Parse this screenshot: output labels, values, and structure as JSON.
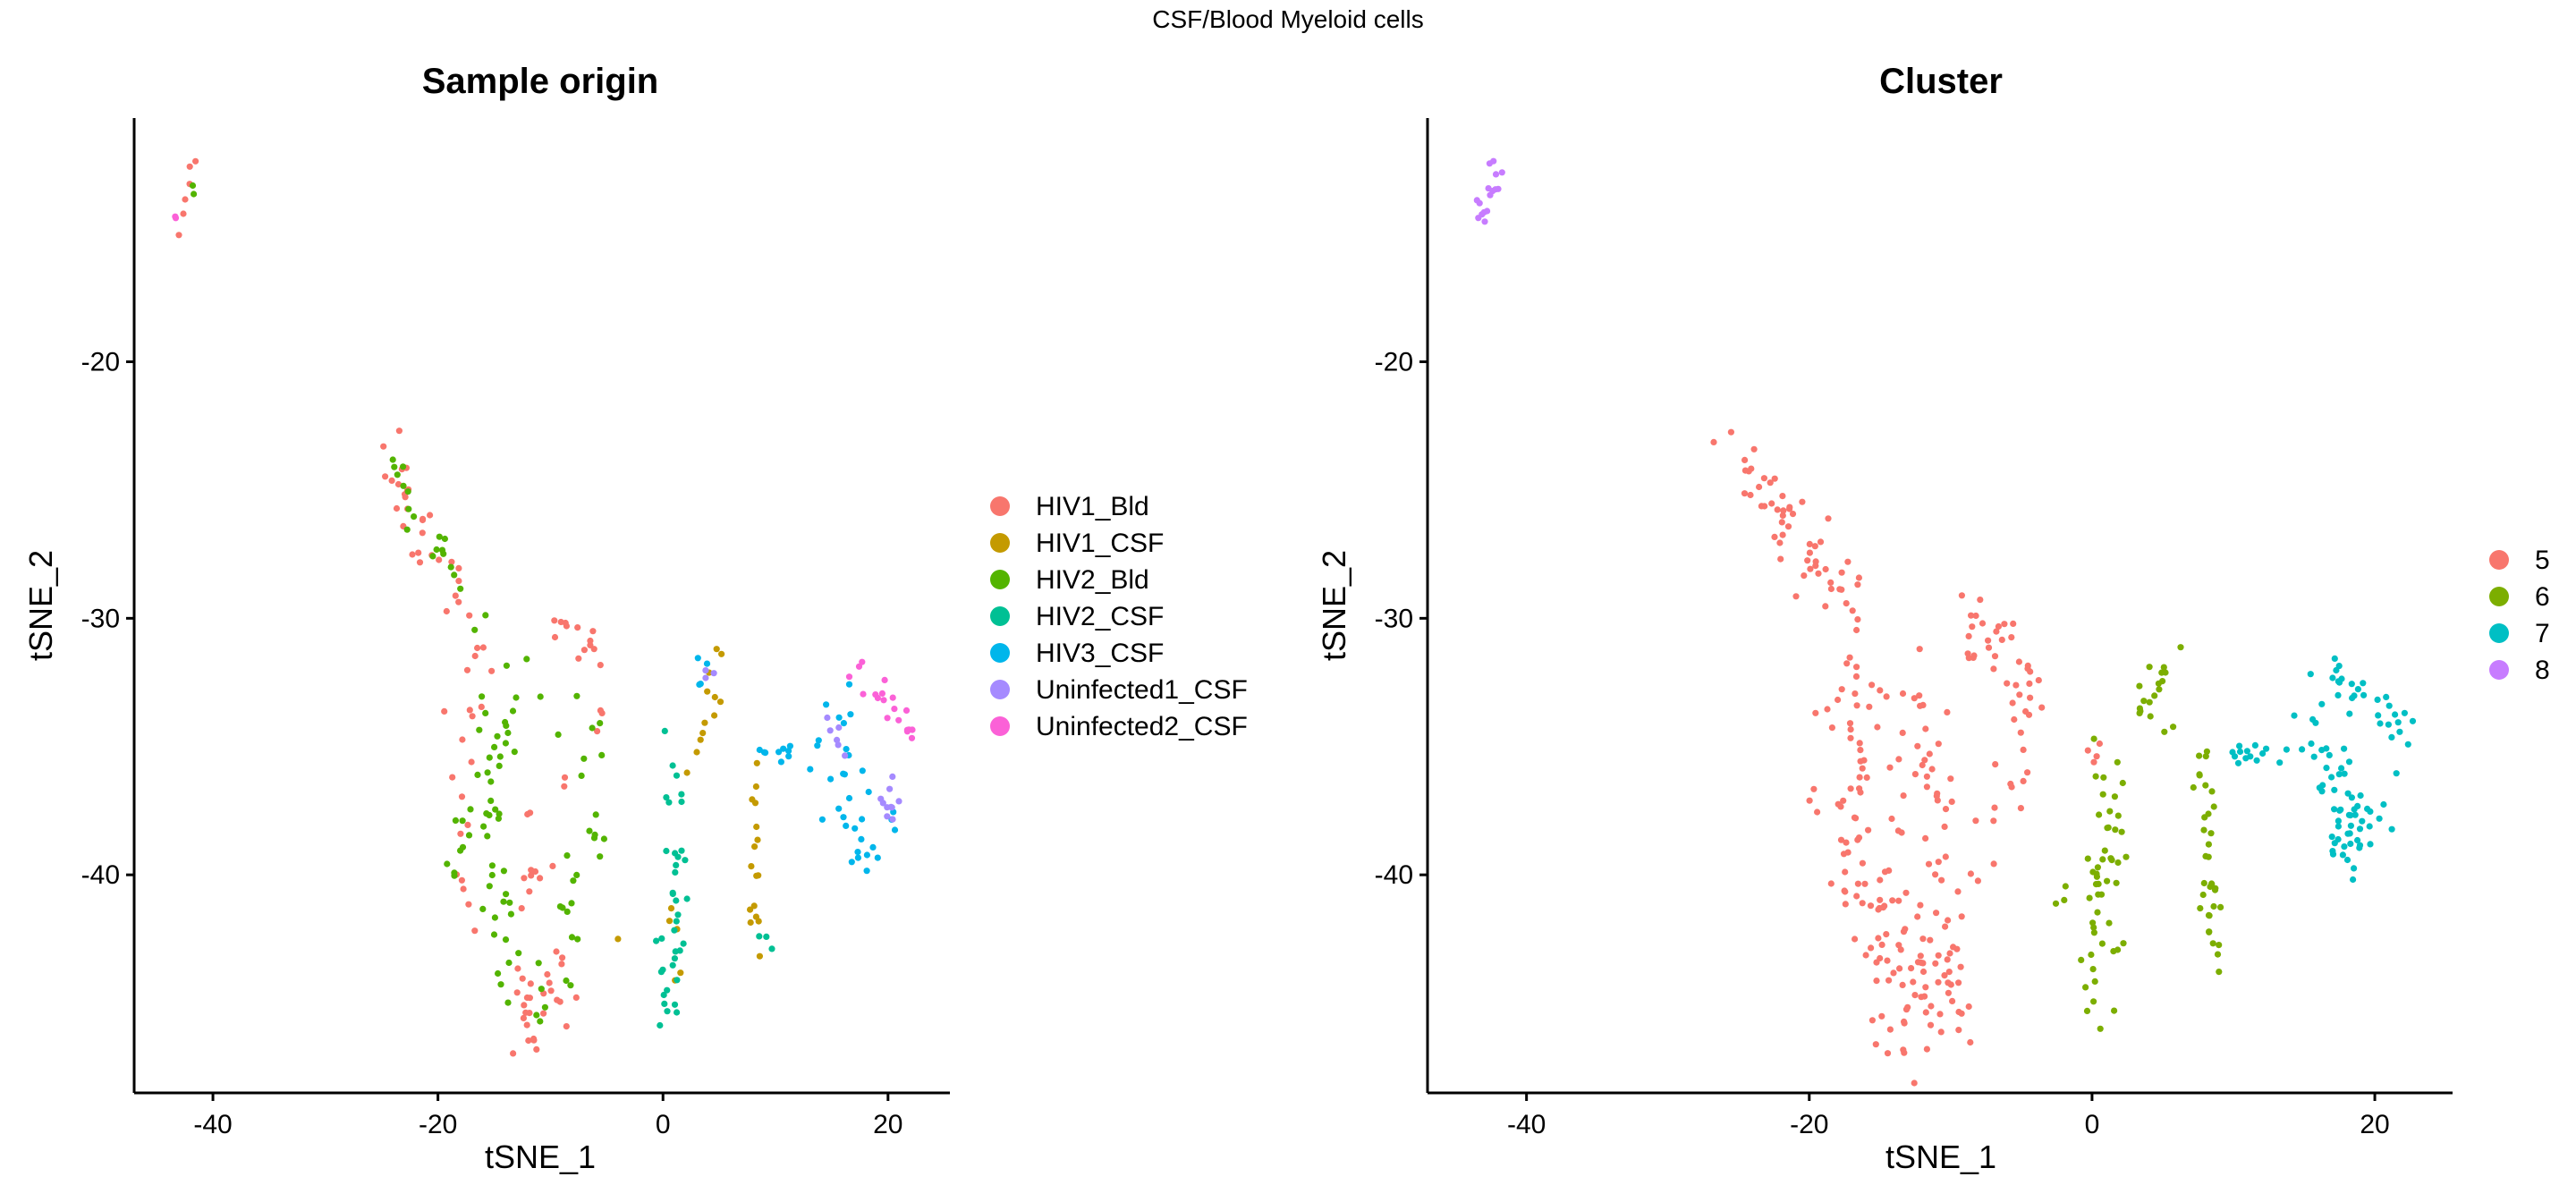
{
  "figure_title": "CSF/Blood Myeloid cells",
  "chart_data": [
    {
      "type": "scatter",
      "title": "Sample origin",
      "xlabel": "tSNE_1",
      "ylabel": "tSNE_2",
      "xlim": [
        -47,
        25.5
      ],
      "ylim": [
        -48.5,
        -10.5
      ],
      "xticks": [
        -40,
        -20,
        0,
        20
      ],
      "yticks": [
        -20,
        -30,
        -40
      ],
      "legend_position": "right",
      "grid": false,
      "series": [
        {
          "name": "HIV1_Bld",
          "color": "#F8766D",
          "regions": [
            {
              "pts": [
                [
                  -42,
                  -12
                ],
                [
                  -41.8,
                  -12.6
                ],
                [
                  -42.3,
                  -13.2
                ],
                [
                  -42.5,
                  -14.2
                ],
                [
                  -43,
                  -14.6
                ],
                [
                  -43.2,
                  -15.2
                ]
              ],
              "sx": 0.3,
              "sy": 0.4
            },
            {
              "pts": [
                [
                  -25,
                  -23.3
                ],
                [
                  -23,
                  -25.5
                ],
                [
                  -21,
                  -27
                ],
                [
                  -19,
                  -28.3
                ],
                [
                  -17,
                  -29.5
                ]
              ],
              "n": 30,
              "sx": 0.6,
              "sy": 0.6
            },
            {
              "pts": [
                [
                  -10,
                  -30.2
                ],
                [
                  -8,
                  -30.2
                ],
                [
                  -6,
                  -31.3
                ],
                [
                  -5,
                  -33.5
                ],
                [
                  -5.5,
                  -35.5
                ]
              ],
              "n": 16,
              "sx": 0.4,
              "sy": 0.4
            },
            {
              "pts": [
                [
                  -16,
                  -31
                ],
                [
                  -17,
                  -34
                ],
                [
                  -18,
                  -38
                ],
                [
                  -17,
                  -42
                ]
              ],
              "n": 20,
              "sx": 1.0,
              "sy": 1.0
            },
            {
              "pts": [
                [
                  -11,
                  -38
                ],
                [
                  -12,
                  -42
                ],
                [
                  -12,
                  -45
                ],
                [
                  -12,
                  -46.5
                ]
              ],
              "n": 26,
              "sx": 1.0,
              "sy": 0.7
            },
            {
              "pts": [
                [
                  -8,
                  -36
                ],
                [
                  -9,
                  -40
                ],
                [
                  -10,
                  -44
                ],
                [
                  -9,
                  -45.5
                ]
              ],
              "n": 14,
              "sx": 0.8,
              "sy": 0.8
            }
          ]
        },
        {
          "name": "HIV1_CSF",
          "color": "#C49A00",
          "regions": [
            {
              "pts": [
                [
                  5,
                  -31.5
                ],
                [
                  4.5,
                  -33
                ],
                [
                  4,
                  -34.5
                ],
                [
                  3,
                  -35.5
                ],
                [
                  2,
                  -36
                ]
              ],
              "n": 12,
              "sx": 0.4,
              "sy": 0.5
            },
            {
              "pts": [
                [
                  8,
                  -35.5
                ],
                [
                  8.3,
                  -38
                ],
                [
                  8.2,
                  -41
                ],
                [
                  8.5,
                  -43
                ]
              ],
              "n": 16,
              "sx": 0.3,
              "sy": 0.5
            },
            {
              "pts": [
                [
                  0.5,
                  -40
                ],
                [
                  1,
                  -42
                ],
                [
                  1.2,
                  -44.5
                ]
              ],
              "n": 5,
              "sx": 0.4,
              "sy": 0.6
            },
            {
              "pts": [
                [
                  -4,
                  -42.5
                ]
              ],
              "n": 1,
              "sx": 0.2,
              "sy": 0.2
            }
          ]
        },
        {
          "name": "HIV2_Bld",
          "color": "#53B400",
          "regions": [
            {
              "pts": [
                [
                  -42,
                  -13.4
                ]
              ],
              "n": 2,
              "sx": 0.15,
              "sy": 0.2
            },
            {
              "pts": [
                [
                  -24,
                  -24
                ],
                [
                  -22,
                  -26
                ],
                [
                  -20,
                  -27.5
                ],
                [
                  -17,
                  -29.5
                ],
                [
                  -15,
                  -30
                ]
              ],
              "n": 20,
              "sx": 0.6,
              "sy": 0.6
            },
            {
              "pts": [
                [
                  -13,
                  -33
                ],
                [
                  -15,
                  -35
                ],
                [
                  -16,
                  -37
                ],
                [
                  -17,
                  -39
                ],
                [
                  -15,
                  -41
                ],
                [
                  -13,
                  -43
                ],
                [
                  -12,
                  -45
                ]
              ],
              "n": 60,
              "sx": 1.3,
              "sy": 0.9
            },
            {
              "pts": [
                [
                  -8,
                  -34
                ],
                [
                  -7,
                  -36
                ],
                [
                  -6,
                  -38
                ],
                [
                  -8,
                  -40
                ],
                [
                  -9,
                  -42
                ],
                [
                  -9,
                  -44
                ]
              ],
              "n": 24,
              "sx": 0.9,
              "sy": 0.8
            }
          ]
        },
        {
          "name": "HIV2_CSF",
          "color": "#00C094",
          "regions": [
            {
              "pts": [
                [
                  0,
                  -34.5
                ],
                [
                  1,
                  -36
                ],
                [
                  1.5,
                  -38
                ],
                [
                  1,
                  -40
                ],
                [
                  1,
                  -42
                ],
                [
                  0.5,
                  -44
                ],
                [
                  0.5,
                  -45.3
                ]
              ],
              "n": 38,
              "sx": 0.6,
              "sy": 0.5
            },
            {
              "pts": [
                [
                  8.5,
                  -42.5
                ],
                [
                  9.5,
                  -43
                ]
              ],
              "n": 3,
              "sx": 0.3,
              "sy": 0.3
            }
          ]
        },
        {
          "name": "HIV3_CSF",
          "color": "#00B6EB",
          "regions": [
            {
              "pts": [
                [
                  8,
                  -35.4
                ],
                [
                  10,
                  -35.4
                ],
                [
                  12,
                  -35.3
                ],
                [
                  14,
                  -35.2
                ]
              ],
              "n": 12,
              "sx": 0.4,
              "sy": 0.3
            },
            {
              "pts": [
                [
                  16,
                  -34
                ],
                [
                  17,
                  -36
                ],
                [
                  17,
                  -38
                ],
                [
                  18,
                  -39.7
                ],
                [
                  19.5,
                  -37.5
                ]
              ],
              "n": 30,
              "sx": 1.0,
              "sy": 0.7
            },
            {
              "pts": [
                [
                  3,
                  -32
                ],
                [
                  4,
                  -32.5
                ]
              ],
              "n": 4,
              "sx": 0.3,
              "sy": 0.3
            }
          ]
        },
        {
          "name": "Uninfected1_CSF",
          "color": "#A58AFF",
          "regions": [
            {
              "pts": [
                [
                  19,
                  -37.5
                ],
                [
                  20,
                  -36.8
                ],
                [
                  20,
                  -38.5
                ]
              ],
              "n": 10,
              "sx": 0.5,
              "sy": 0.5
            },
            {
              "pts": [
                [
                  15.5,
                  -34
                ],
                [
                  16,
                  -35
                ]
              ],
              "n": 6,
              "sx": 0.4,
              "sy": 0.4
            },
            {
              "pts": [
                [
                  4,
                  -32.3
                ]
              ],
              "n": 3,
              "sx": 0.3,
              "sy": 0.3
            }
          ]
        },
        {
          "name": "Uninfected2_CSF",
          "color": "#FB61D7",
          "regions": [
            {
              "pts": [
                [
                  17.5,
                  -32.3
                ],
                [
                  19,
                  -32.8
                ],
                [
                  20.5,
                  -33.5
                ],
                [
                  21.5,
                  -34
                ],
                [
                  22,
                  -35
                ]
              ],
              "n": 20,
              "sx": 0.4,
              "sy": 0.3
            },
            {
              "pts": [
                [
                  -43.4,
                  -14
                ],
                [
                  -43.4,
                  -14.5
                ]
              ],
              "n": 2,
              "sx": 0.15,
              "sy": 0.2
            }
          ]
        }
      ]
    },
    {
      "type": "scatter",
      "title": "Cluster",
      "xlabel": "tSNE_1",
      "ylabel": "tSNE_2",
      "xlim": [
        -47,
        25.5
      ],
      "ylim": [
        -48.5,
        -10.5
      ],
      "xticks": [
        -40,
        -20,
        0,
        20
      ],
      "yticks": [
        -20,
        -30,
        -40
      ],
      "legend_position": "right",
      "grid": false,
      "series": [
        {
          "name": "5",
          "color": "#F8766D",
          "regions": [
            {
              "pts": [
                [
                  -25,
                  -23.3
                ],
                [
                  -23,
                  -25.5
                ],
                [
                  -21,
                  -27
                ],
                [
                  -19,
                  -28.3
                ],
                [
                  -17,
                  -29.5
                ]
              ],
              "n": 55,
              "sx": 0.7,
              "sy": 0.6
            },
            {
              "pts": [
                [
                  -16,
                  -31
                ],
                [
                  -17,
                  -34
                ],
                [
                  -17,
                  -37
                ],
                [
                  -17,
                  -40
                ],
                [
                  -15,
                  -42
                ],
                [
                  -13,
                  -44
                ],
                [
                  -12,
                  -46.5
                ]
              ],
              "n": 120,
              "sx": 1.4,
              "sy": 0.9
            },
            {
              "pts": [
                [
                  -13,
                  -32
                ],
                [
                  -12,
                  -36
                ],
                [
                  -11,
                  -40
                ],
                [
                  -10,
                  -43
                ],
                [
                  -10,
                  -45.5
                ]
              ],
              "n": 60,
              "sx": 1.2,
              "sy": 0.9
            },
            {
              "pts": [
                [
                  -10,
                  -30.2
                ],
                [
                  -8,
                  -30.2
                ],
                [
                  -6,
                  -31.3
                ],
                [
                  -5,
                  -33.5
                ],
                [
                  -5.5,
                  -36
                ],
                [
                  -8,
                  -38
                ],
                [
                  -8,
                  -41
                ]
              ],
              "n": 50,
              "sx": 0.9,
              "sy": 0.7
            },
            {
              "pts": [
                [
                  0,
                  -34.5
                ],
                [
                  0.5,
                  -35.5
                ]
              ],
              "n": 4,
              "sx": 0.3,
              "sy": 0.3
            }
          ]
        },
        {
          "name": "6",
          "color": "#7CAE00",
          "regions": [
            {
              "pts": [
                [
                  1,
                  -35
                ],
                [
                  1.5,
                  -37
                ],
                [
                  1.3,
                  -39
                ],
                [
                  1,
                  -41
                ],
                [
                  0.5,
                  -43
                ],
                [
                  0.5,
                  -45.3
                ]
              ],
              "n": 50,
              "sx": 0.7,
              "sy": 0.6
            },
            {
              "pts": [
                [
                  5,
                  -31.5
                ],
                [
                  4.5,
                  -33
                ],
                [
                  5.5,
                  -34
                ]
              ],
              "n": 18,
              "sx": 0.8,
              "sy": 0.5
            },
            {
              "pts": [
                [
                  7.5,
                  -35.5
                ],
                [
                  8,
                  -38
                ],
                [
                  8.5,
                  -40
                ],
                [
                  8.5,
                  -42
                ],
                [
                  9.5,
                  -43
                ]
              ],
              "n": 34,
              "sx": 0.4,
              "sy": 0.6
            },
            {
              "pts": [
                [
                  -1.5,
                  -40.3
                ],
                [
                  -4,
                  -42.5
                ]
              ],
              "n": 3,
              "sx": 0.3,
              "sy": 0.3
            }
          ]
        },
        {
          "name": "7",
          "color": "#00BFC4",
          "regions": [
            {
              "pts": [
                [
                  10,
                  -35.4
                ],
                [
                  12,
                  -35.3
                ],
                [
                  14,
                  -35.2
                ]
              ],
              "n": 14,
              "sx": 0.5,
              "sy": 0.3
            },
            {
              "pts": [
                [
                  17,
                  -32.5
                ],
                [
                  19,
                  -33
                ],
                [
                  21,
                  -33.5
                ],
                [
                  22,
                  -35
                ]
              ],
              "n": 30,
              "sx": 0.7,
              "sy": 0.4
            },
            {
              "pts": [
                [
                  15.5,
                  -34
                ],
                [
                  17,
                  -35
                ],
                [
                  17,
                  -37
                ],
                [
                  18,
                  -38.5
                ],
                [
                  19.5,
                  -37.5
                ],
                [
                  18.5,
                  -39.7
                ]
              ],
              "n": 60,
              "sx": 1.0,
              "sy": 0.7
            }
          ]
        },
        {
          "name": "8",
          "color": "#C77CFF",
          "regions": [
            {
              "pts": [
                [
                  -42,
                  -12
                ],
                [
                  -42.3,
                  -12.8
                ],
                [
                  -42.5,
                  -13.5
                ],
                [
                  -43,
                  -14.2
                ],
                [
                  -43.2,
                  -14.8
                ]
              ],
              "n": 16,
              "sx": 0.3,
              "sy": 0.35
            }
          ]
        }
      ]
    }
  ]
}
